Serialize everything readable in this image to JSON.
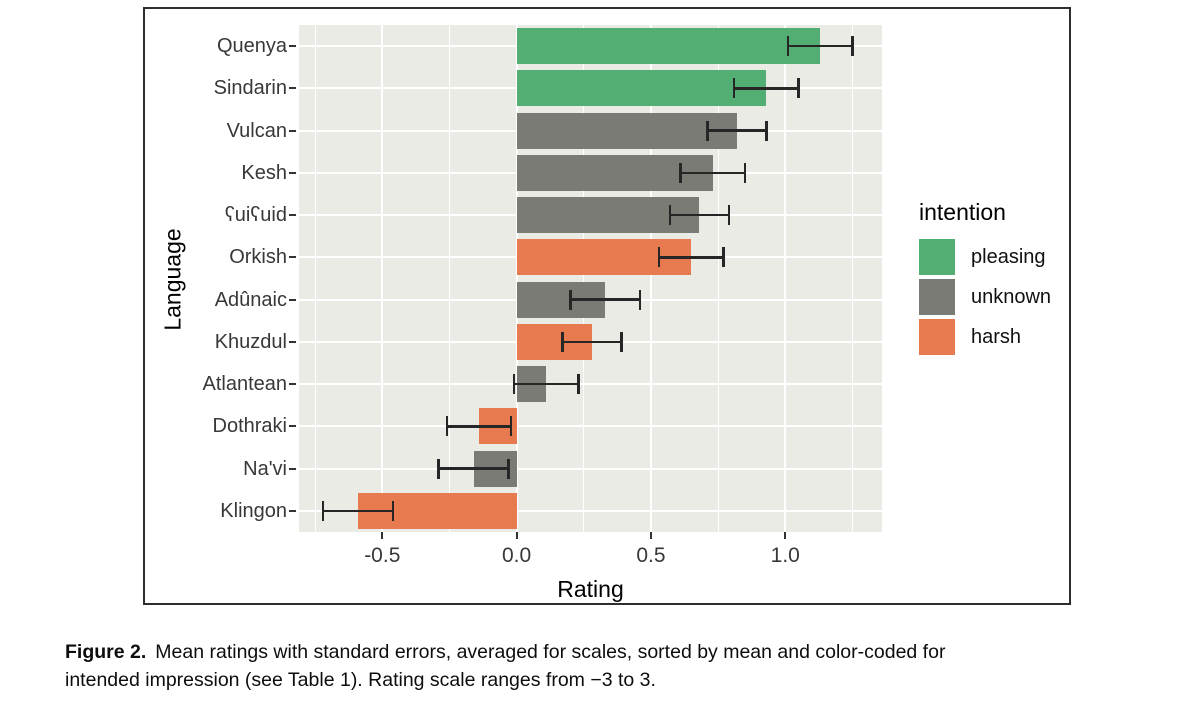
{
  "figure": {
    "caption": {
      "label": "Figure 2.",
      "line1_rest": "Mean ratings with standard errors, averaged for scales, sorted by mean and color-coded for",
      "line2": "intended impression (see Table 1). Rating scale ranges from −3 to 3."
    }
  },
  "chart_data": {
    "type": "bar",
    "orientation": "horizontal",
    "title": "",
    "xlabel": "Rating",
    "ylabel": "Language",
    "xlim": [
      -0.81,
      1.36
    ],
    "x_ticks": [
      -0.5,
      0.0,
      0.5,
      1.0
    ],
    "x_tick_labels": [
      "-0.5",
      "0.0",
      "0.5",
      "1.0"
    ],
    "x_minor_ticks": [
      -0.75,
      -0.25,
      0.25,
      0.75,
      1.25
    ],
    "grid": "on",
    "panel_bg": "#EBEBE6",
    "gridline_color": "#FFFFFF",
    "errorbar_color": "#262626",
    "bar_height_fraction": 0.85,
    "categories": [
      "Quenya",
      "Sindarin",
      "Vulcan",
      "Kesh",
      "ʕuiʕuid",
      "Orkish",
      "Adûnaic",
      "Khuzdul",
      "Atlantean",
      "Dothraki",
      "Na'vi",
      "Klingon"
    ],
    "bars": [
      {
        "language": "Quenya",
        "intention": "pleasing",
        "mean": 1.13,
        "se": 0.12
      },
      {
        "language": "Sindarin",
        "intention": "pleasing",
        "mean": 0.93,
        "se": 0.12
      },
      {
        "language": "Vulcan",
        "intention": "unknown",
        "mean": 0.82,
        "se": 0.11
      },
      {
        "language": "Kesh",
        "intention": "unknown",
        "mean": 0.73,
        "se": 0.12
      },
      {
        "language": "ʕuiʕuid",
        "intention": "unknown",
        "mean": 0.68,
        "se": 0.11
      },
      {
        "language": "Orkish",
        "intention": "harsh",
        "mean": 0.65,
        "se": 0.12
      },
      {
        "language": "Adûnaic",
        "intention": "unknown",
        "mean": 0.33,
        "se": 0.13
      },
      {
        "language": "Khuzdul",
        "intention": "harsh",
        "mean": 0.28,
        "se": 0.11
      },
      {
        "language": "Atlantean",
        "intention": "unknown",
        "mean": 0.11,
        "se": 0.12
      },
      {
        "language": "Dothraki",
        "intention": "harsh",
        "mean": -0.14,
        "se": 0.12
      },
      {
        "language": "Na'vi",
        "intention": "unknown",
        "mean": -0.16,
        "se": 0.13
      },
      {
        "language": "Klingon",
        "intention": "harsh",
        "mean": -0.59,
        "se": 0.13
      }
    ],
    "legend": {
      "title": "intention",
      "position": "right",
      "entries": [
        {
          "label": "pleasing",
          "color": "#53AE73"
        },
        {
          "label": "unknown",
          "color": "#7A7B74"
        },
        {
          "label": "harsh",
          "color": "#E77A4F"
        }
      ]
    }
  }
}
